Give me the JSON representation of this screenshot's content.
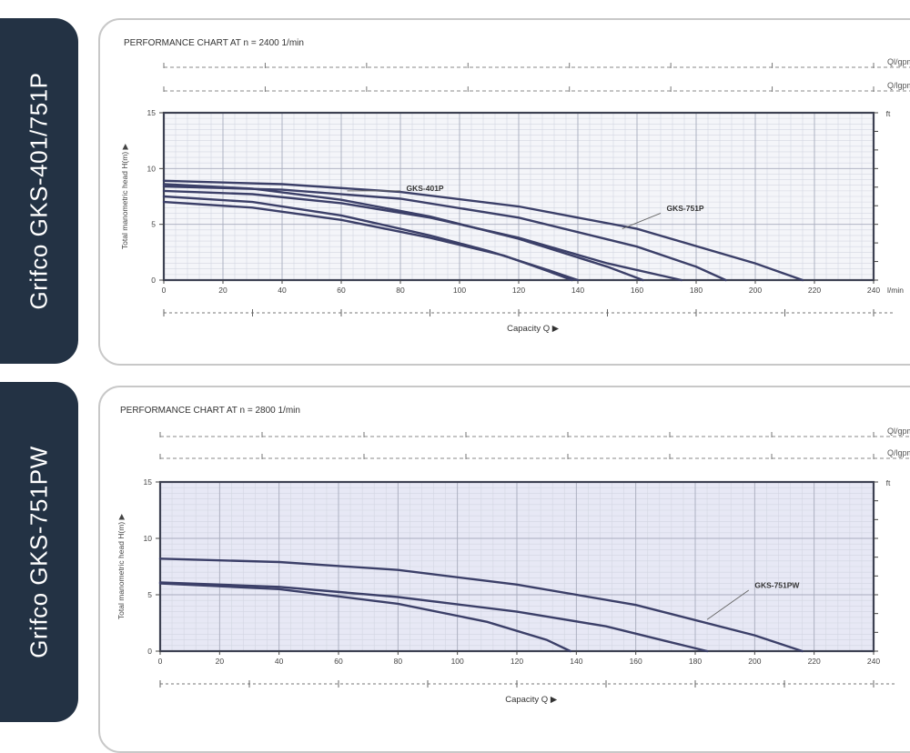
{
  "tabs": [
    {
      "label": "Grifco GKS-401/751P"
    },
    {
      "label": "Grifco GKS-751PW"
    }
  ],
  "chart_data": [
    {
      "type": "line",
      "title": "PERFORMANCE CHART AT  n = 2400 1/min",
      "xlabel": "Capacity  Q ▶",
      "ylabel": "Total manometric head H(m) ▶",
      "top_axis_labels": [
        "Ql/gpm",
        "Q/lgpm"
      ],
      "right_axis_label": "ft",
      "xlim": [
        0,
        240
      ],
      "ylim": [
        0,
        15
      ],
      "x_ticks": [
        "0",
        "20",
        "40",
        "60",
        "80",
        "100",
        "120",
        "140",
        "160",
        "180",
        "200",
        "220",
        "240",
        "l/min"
      ],
      "y_ticks": [
        "0",
        "5",
        "10",
        "15"
      ],
      "annotations": [
        "GKS-401P",
        "GKS-751P"
      ],
      "series": [
        {
          "x": [
            0,
            30,
            60,
            90,
            120,
            150,
            162
          ],
          "y": [
            8.6,
            8.2,
            7.2,
            5.7,
            3.7,
            1.2,
            0
          ]
        },
        {
          "x": [
            0,
            30,
            60,
            90,
            120,
            150,
            175
          ],
          "y": [
            8.0,
            7.7,
            6.9,
            5.6,
            3.8,
            1.5,
            0
          ]
        },
        {
          "x": [
            0,
            30,
            60,
            90,
            110,
            130,
            140
          ],
          "y": [
            7.5,
            7.0,
            5.8,
            4.0,
            2.6,
            0.9,
            0
          ]
        },
        {
          "x": [
            0,
            30,
            60,
            90,
            115,
            130,
            138
          ],
          "y": [
            7.0,
            6.5,
            5.4,
            3.8,
            2.2,
            0.8,
            0
          ]
        },
        {
          "x": [
            0,
            40,
            80,
            120,
            160,
            180,
            190
          ],
          "y": [
            8.4,
            8.1,
            7.3,
            5.6,
            3.0,
            1.2,
            0
          ]
        },
        {
          "x": [
            0,
            40,
            80,
            120,
            160,
            200,
            216
          ],
          "y": [
            8.9,
            8.6,
            7.9,
            6.6,
            4.6,
            1.5,
            0
          ]
        }
      ]
    },
    {
      "type": "line",
      "title": "PERFORMANCE CHART AT  n = 2800 1/min",
      "xlabel": "Capacity  Q ▶",
      "ylabel": "Total manometric head H(m) ▶",
      "top_axis_labels": [
        "Ql/gpm",
        "Q/lgpm"
      ],
      "right_axis_label": "ft",
      "xlim": [
        0,
        240
      ],
      "ylim": [
        0,
        15
      ],
      "x_ticks": [
        "0",
        "20",
        "40",
        "60",
        "80",
        "100",
        "120",
        "140",
        "160",
        "180",
        "200",
        "220",
        "240"
      ],
      "y_ticks": [
        "0",
        "5",
        "10",
        "15"
      ],
      "annotations": [
        "GKS-751PW"
      ],
      "series": [
        {
          "x": [
            0,
            40,
            80,
            120,
            160,
            200,
            216
          ],
          "y": [
            8.2,
            7.9,
            7.2,
            5.9,
            4.1,
            1.4,
            0
          ]
        },
        {
          "x": [
            0,
            40,
            80,
            120,
            150,
            170,
            184
          ],
          "y": [
            6.1,
            5.7,
            4.8,
            3.5,
            2.2,
            0.9,
            0
          ]
        },
        {
          "x": [
            0,
            40,
            80,
            110,
            130,
            138
          ],
          "y": [
            6.0,
            5.5,
            4.2,
            2.6,
            1.0,
            0
          ]
        }
      ]
    }
  ]
}
